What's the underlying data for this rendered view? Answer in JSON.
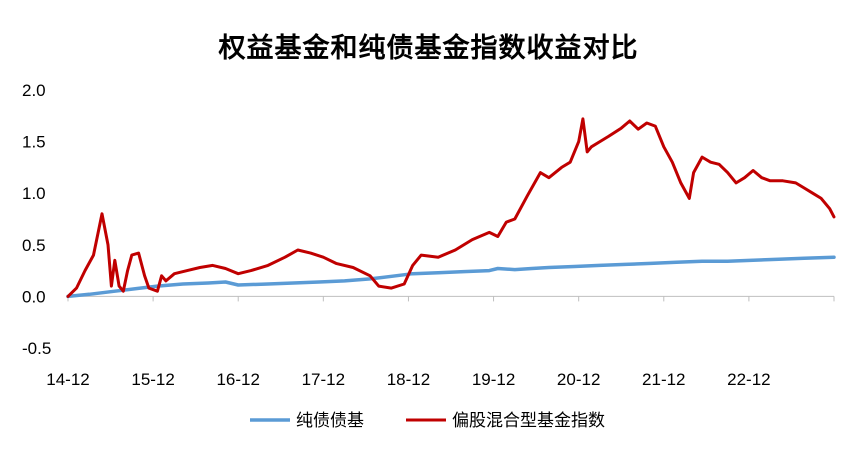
{
  "chart_data": {
    "type": "line",
    "title": "权益基金和纯债基金指数收益对比",
    "xlabel": "",
    "ylabel": "",
    "ylim": [
      -0.5,
      2.0
    ],
    "yticks": [
      "2.0",
      "1.5",
      "1.0",
      "0.5",
      "0.0",
      "-0.5"
    ],
    "ytick_values": [
      2.0,
      1.5,
      1.0,
      0.5,
      0.0,
      -0.5
    ],
    "xticks": [
      "14-12",
      "15-12",
      "16-12",
      "17-12",
      "18-12",
      "19-12",
      "20-12",
      "21-12",
      "22-12"
    ],
    "x_range": [
      2014.95,
      2023.95
    ],
    "legend_position": "bottom",
    "grid": false,
    "series": [
      {
        "name": "纯债债基",
        "color": "#5B9BD5",
        "x": [
          2014.95,
          2015.2,
          2015.5,
          2015.8,
          2016.0,
          2016.3,
          2016.6,
          2016.8,
          2016.95,
          2017.3,
          2017.6,
          2017.9,
          2018.2,
          2018.5,
          2018.8,
          2019.0,
          2019.3,
          2019.6,
          2019.9,
          2020.0,
          2020.2,
          2020.4,
          2020.6,
          2020.9,
          2021.2,
          2021.5,
          2021.8,
          2022.1,
          2022.4,
          2022.7,
          2023.0,
          2023.3,
          2023.6,
          2023.95
        ],
        "values": [
          0.0,
          0.02,
          0.05,
          0.08,
          0.1,
          0.12,
          0.13,
          0.14,
          0.11,
          0.12,
          0.13,
          0.14,
          0.15,
          0.17,
          0.2,
          0.22,
          0.23,
          0.24,
          0.25,
          0.27,
          0.26,
          0.27,
          0.28,
          0.29,
          0.3,
          0.31,
          0.32,
          0.33,
          0.34,
          0.34,
          0.35,
          0.36,
          0.37,
          0.38
        ]
      },
      {
        "name": "偏股混合型基金指数",
        "color": "#C00000",
        "x": [
          2014.95,
          2015.05,
          2015.15,
          2015.25,
          2015.35,
          2015.42,
          2015.46,
          2015.5,
          2015.55,
          2015.6,
          2015.65,
          2015.7,
          2015.78,
          2015.85,
          2015.9,
          2016.0,
          2016.05,
          2016.1,
          2016.2,
          2016.35,
          2016.5,
          2016.65,
          2016.8,
          2016.95,
          2017.1,
          2017.3,
          2017.5,
          2017.65,
          2017.8,
          2017.95,
          2018.1,
          2018.3,
          2018.5,
          2018.6,
          2018.75,
          2018.9,
          2019.0,
          2019.1,
          2019.3,
          2019.5,
          2019.7,
          2019.9,
          2020.0,
          2020.1,
          2020.2,
          2020.35,
          2020.5,
          2020.6,
          2020.75,
          2020.85,
          2020.95,
          2021.0,
          2021.05,
          2021.1,
          2021.2,
          2021.3,
          2021.45,
          2021.55,
          2021.65,
          2021.75,
          2021.85,
          2021.95,
          2022.05,
          2022.15,
          2022.25,
          2022.3,
          2022.4,
          2022.5,
          2022.6,
          2022.7,
          2022.8,
          2022.9,
          2023.0,
          2023.1,
          2023.2,
          2023.35,
          2023.5,
          2023.6,
          2023.7,
          2023.8,
          2023.9,
          2023.95
        ],
        "values": [
          0.0,
          0.08,
          0.25,
          0.4,
          0.8,
          0.5,
          0.1,
          0.35,
          0.1,
          0.05,
          0.25,
          0.4,
          0.42,
          0.2,
          0.08,
          0.05,
          0.2,
          0.15,
          0.22,
          0.25,
          0.28,
          0.3,
          0.27,
          0.22,
          0.25,
          0.3,
          0.38,
          0.45,
          0.42,
          0.38,
          0.32,
          0.28,
          0.2,
          0.1,
          0.08,
          0.12,
          0.3,
          0.4,
          0.38,
          0.45,
          0.55,
          0.62,
          0.58,
          0.72,
          0.75,
          0.98,
          1.2,
          1.15,
          1.25,
          1.3,
          1.5,
          1.72,
          1.4,
          1.45,
          1.5,
          1.55,
          1.63,
          1.7,
          1.62,
          1.68,
          1.65,
          1.45,
          1.3,
          1.1,
          0.95,
          1.2,
          1.35,
          1.3,
          1.28,
          1.2,
          1.1,
          1.15,
          1.22,
          1.15,
          1.12,
          1.12,
          1.1,
          1.05,
          1.0,
          0.95,
          0.85,
          0.77
        ]
      }
    ]
  }
}
